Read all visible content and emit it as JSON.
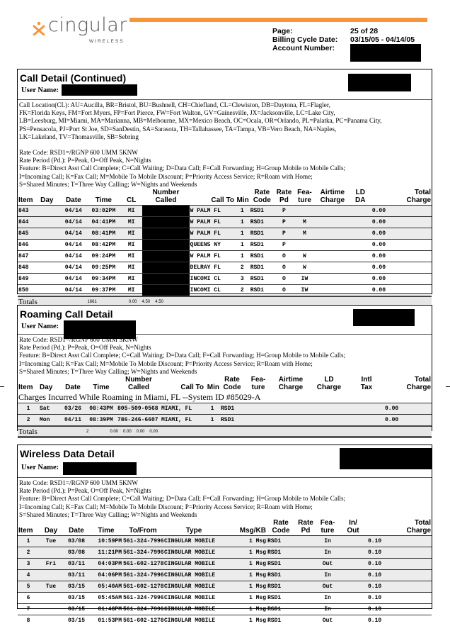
{
  "header": {
    "logo_text": "cingular",
    "logo_sub": "WIRELESS",
    "brand_color": "#f7953b",
    "page_label": "Page:",
    "page_value": "25 of 28",
    "cycle_label": "Billing Cycle Date:",
    "cycle_value": "03/15/05 - 04/14/05",
    "account_label": "Account Number:"
  },
  "call_detail": {
    "title": "Call Detail (Continued)",
    "user_label": "User Name:",
    "legend": [
      "Call Location(CL):  AU=Aucilla, BR=Bristol, BU=Bushnell, CH=Chiefland, CL=Clewiston, DB=Daytona, FL=Flagler,",
      "FK=Florida Keys, FM=Fort Myers, FP=Fort Pierce, FW=Fort Walton, GV=Gainesville, JX=Jacksonville, LC=Lake City,",
      "LB=Leesburg, MI=Miami, MA=Marianna, MB=Melbourne, MX=Mexico Beach, OC=Ocala, OR=Orlando, PL=Palatka, PC=Panama City,",
      "PS=Pensacola, PJ=Port St Joe, SD=SanDestin, SA=Sarasota, TH=Tallahassee, TA=Tampa, VB=Vero Beach, NA=Naples,",
      "LK=Lakeland, TV=Thomasville, SB=Sebring",
      "",
      "Rate Code: RSD1=/RGNP 600 UMM 5KNW",
      "Rate Period (Pd.): P=Peak, O=Off Peak, N=Nights",
      "Feature: B=Direct Asst Call Complete; C=Call Waiting; D=Data Call; F=Call Forwarding; H=Group Mobile to Mobile Calls;",
      "I=Incoming Call; K=Fax Call; M=Mobile To Mobile Discount; P=Priority Access Service; R=Roam with Home;",
      "S=Shared Minutes;  T=Three Way Calling; W=Nights and Weekends"
    ],
    "columns": [
      "Item",
      "Day",
      "Date",
      "Time",
      "CL",
      "Number\nCalled",
      "Call To",
      "Min",
      "Rate\nCode",
      "Rate\nPd",
      "Fea-\nture",
      "Airtime\nCharge",
      "LD\nDA",
      "Total\nCharge"
    ],
    "rows": [
      [
        "843",
        "",
        "04/14",
        "03:02PM",
        "MI",
        "",
        "W PALM FL",
        "1",
        "RSD1",
        "P",
        "",
        "",
        "",
        "0.00"
      ],
      [
        "844",
        "",
        "04/14",
        "04:41PM",
        "MI",
        "",
        "W PALM FL",
        "1",
        "RSD1",
        "P",
        "M",
        "",
        "",
        "0.00"
      ],
      [
        "845",
        "",
        "04/14",
        "08:41PM",
        "MI",
        "",
        "W PALM FL",
        "1",
        "RSD1",
        "P",
        "M",
        "",
        "",
        "0.00"
      ],
      [
        "846",
        "",
        "04/14",
        "08:42PM",
        "MI",
        "",
        "QUEENS NY",
        "1",
        "RSD1",
        "P",
        "",
        "",
        "",
        "0.00"
      ],
      [
        "847",
        "",
        "04/14",
        "09:24PM",
        "MI",
        "",
        "W PALM FL",
        "1",
        "RSD1",
        "O",
        "W",
        "",
        "",
        "0.00"
      ],
      [
        "848",
        "",
        "04/14",
        "09:25PM",
        "MI",
        "",
        "DELRAY FL",
        "2",
        "RSD1",
        "O",
        "W",
        "",
        "",
        "0.00"
      ],
      [
        "849",
        "",
        "04/14",
        "09:34PM",
        "MI",
        "",
        "INCOMI CL",
        "3",
        "RSD1",
        "O",
        "IW",
        "",
        "",
        "0.00"
      ],
      [
        "850",
        "",
        "04/14",
        "09:37PM",
        "MI",
        "",
        "INCOMI CL",
        "2",
        "RSD1",
        "O",
        "IW",
        "",
        "",
        "0.00"
      ]
    ],
    "totals": {
      "label": "Totals",
      "min": "1661",
      "airtime": "0.00",
      "ld": "4.50",
      "total": "4.50"
    }
  },
  "roaming": {
    "title": "Roaming Call Detail",
    "user_label": "User Name:",
    "legend": [
      "Rate Code: RSD1=/RGNP 600 UMM 5KNW",
      "Rate Period (Pd.): P=Peak, O=Off Peak, N=Nights",
      "Feature: B=Direct Asst Call Complete; C=Call Waiting; D=Data Call; F=Call Forwarding; H=Group Mobile to Mobile Calls;",
      "I=Incoming Call; K=Fax Call; M=Mobile To Mobile Discount; P=Priority Access Service; R=Roam with Home;",
      "S=Shared Minutes;  T=Three Way Calling; W=Nights and Weekends"
    ],
    "columns": [
      "Item",
      "Day",
      "Date",
      "Time",
      "Number\nCalled",
      "Call To",
      "Min",
      "Rate\nCode",
      "Fea-\nture",
      "Airtime\nCharge",
      "LD\nCharge",
      "Intl\nTax",
      "Total\nCharge"
    ],
    "subheading": "Charges Incurred While Roaming in Miami, FL --System ID #85029-A",
    "rows": [
      [
        "1",
        "Sat",
        "03/26",
        "08:43PM",
        "805-509-0568",
        "MIAMI, FL",
        "1",
        "RSD1",
        "",
        "",
        "",
        "",
        "0.00"
      ],
      [
        "2",
        "Mon",
        "04/11",
        "08:39PM",
        "786-246-6607",
        "MIAMI, FL",
        "1",
        "RSD1",
        "",
        "",
        "",
        "",
        "0.00"
      ]
    ],
    "totals": {
      "label": "Totals",
      "min": "2",
      "airtime": "0.00",
      "ld": "0.00",
      "tax": "0.00",
      "total": "0.00"
    }
  },
  "data_detail": {
    "title": "Wireless Data Detail",
    "user_label": "User Name:",
    "legend": [
      "Rate Code: RSD1=/RGNP 600 UMM 5KNW",
      "Rate Period (Pd.): P=Peak, O=Off Peak, N=Nights",
      "Feature: B=Direct Asst Call Complete; C=Call Waiting; D=Data Call; F=Call Forwarding; H=Group Mobile to Mobile Calls;",
      "I=Incoming Call; K=Fax Call; M=Mobile To Mobile Discount; P=Priority Access Service; R=Roam with Home;",
      "S=Shared Minutes;  T=Three Way Calling; W=Nights and Weekends"
    ],
    "columns": [
      "Item",
      "Day",
      "Date",
      "Time",
      "To/From",
      "Type",
      "Msg/KB",
      "Rate\nCode",
      "Rate\nPd",
      "Fea-\nture",
      "In/\nOut",
      "Total\nCharge"
    ],
    "rows": [
      [
        "1",
        "Tue",
        "03/08",
        "10:59PM",
        "561-324-7996",
        "CINGULAR MOBILE",
        "1 Msg",
        "RSD1",
        "",
        "In",
        "",
        "0.10"
      ],
      [
        "2",
        "",
        "03/08",
        "11:21PM",
        "561-324-7996",
        "CINGULAR MOBILE",
        "1 Msg",
        "RSD1",
        "",
        "In",
        "",
        "0.10"
      ],
      [
        "3",
        "Fri",
        "03/11",
        "04:03PM",
        "561-602-1278",
        "CINGULAR MOBILE",
        "1 Msg",
        "RSD1",
        "",
        "Out",
        "",
        "0.10"
      ],
      [
        "4",
        "",
        "03/11",
        "04:06PM",
        "561-324-7996",
        "CINGULAR MOBILE",
        "1 Msg",
        "RSD1",
        "",
        "In",
        "",
        "0.10"
      ],
      [
        "5",
        "Tue",
        "03/15",
        "05:40AM",
        "561-602-1278",
        "CINGULAR MOBILE",
        "1 Msg",
        "RSD1",
        "",
        "Out",
        "",
        "0.10"
      ],
      [
        "6",
        "",
        "03/15",
        "05:45AM",
        "561-324-7996",
        "CINGULAR MOBILE",
        "1 Msg",
        "RSD1",
        "",
        "In",
        "",
        "0.10"
      ],
      [
        "7",
        "",
        "03/15",
        "01:48PM",
        "561-324-7996",
        "CINGULAR MOBILE",
        "1 Msg",
        "RSD1",
        "",
        "In",
        "",
        "0.10"
      ],
      [
        "8",
        "",
        "03/15",
        "01:53PM",
        "561-602-1278",
        "CINGULAR MOBILE",
        "1 Msg",
        "RSD1",
        "",
        "Out",
        "",
        "0.10"
      ]
    ]
  }
}
